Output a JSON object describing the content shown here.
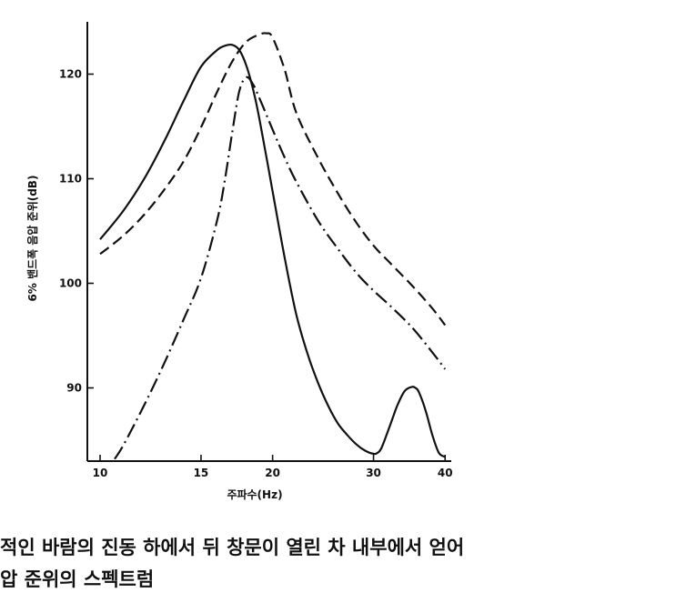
{
  "chart_data": {
    "type": "line",
    "xlabel": "주파수(Hz)",
    "ylabel": "6% 밴드폭 음압 준위(dB)",
    "xscale": "log",
    "xlim": [
      9.5,
      41
    ],
    "ylim": [
      83,
      125
    ],
    "xticks": [
      10,
      15,
      20,
      30,
      40
    ],
    "yticks": [
      90,
      100,
      110,
      120
    ],
    "grid": false,
    "series": [
      {
        "style": "solid",
        "x": [
          10,
          11,
          12,
          13,
          14,
          15,
          16,
          16.5,
          17,
          17.5,
          18,
          18.5,
          19,
          20,
          21,
          22,
          23,
          24,
          25,
          26,
          27,
          28,
          29,
          30,
          30.5,
          31,
          32,
          33,
          34,
          35,
          35.5,
          36,
          37,
          38,
          39,
          40
        ],
        "y": [
          104.2,
          107,
          110.2,
          113.8,
          117.5,
          120.7,
          122.3,
          122.7,
          122.8,
          122.3,
          120.8,
          118.5,
          115.5,
          108.8,
          102.4,
          97,
          93.3,
          90.5,
          88.3,
          86.6,
          85.5,
          84.6,
          84,
          83.7,
          83.8,
          84.3,
          86.3,
          88.3,
          89.7,
          90.1,
          90,
          89.6,
          87.8,
          85.5,
          83.8,
          83.4
        ]
      },
      {
        "style": "dashed",
        "x": [
          10,
          11,
          12,
          13,
          14,
          15,
          16,
          17,
          18,
          19,
          19.5,
          20,
          21,
          22,
          24,
          26,
          28,
          30,
          32,
          35,
          38,
          40
        ],
        "y": [
          102.8,
          104.6,
          106.7,
          109.1,
          111.7,
          114.9,
          118.3,
          121.2,
          123.1,
          123.8,
          123.9,
          123.5,
          120.4,
          116.3,
          112,
          108.6,
          105.8,
          103.6,
          102,
          99.8,
          97.6,
          96
        ]
      },
      {
        "style": "dash-dot",
        "x": [
          10.6,
          11,
          12,
          13,
          14,
          15,
          16,
          16.5,
          17,
          17.5,
          18,
          18.5,
          19,
          20,
          21,
          22,
          24,
          26,
          28,
          30,
          32,
          35,
          38,
          40
        ],
        "y": [
          83.2,
          84.6,
          88.6,
          92.6,
          96.6,
          100.5,
          106,
          109.8,
          114.4,
          118.4,
          119.7,
          119,
          117.6,
          114.7,
          112,
          109.7,
          106,
          103.3,
          101,
          99.3,
          97.9,
          95.8,
          93.4,
          91.8
        ]
      }
    ]
  },
  "caption": {
    "line1": "적인 바람의 진동 하에서 뒤 창문이 열린 차 내부에서 얻어",
    "line2": "압 준위의 스펙트럼"
  }
}
